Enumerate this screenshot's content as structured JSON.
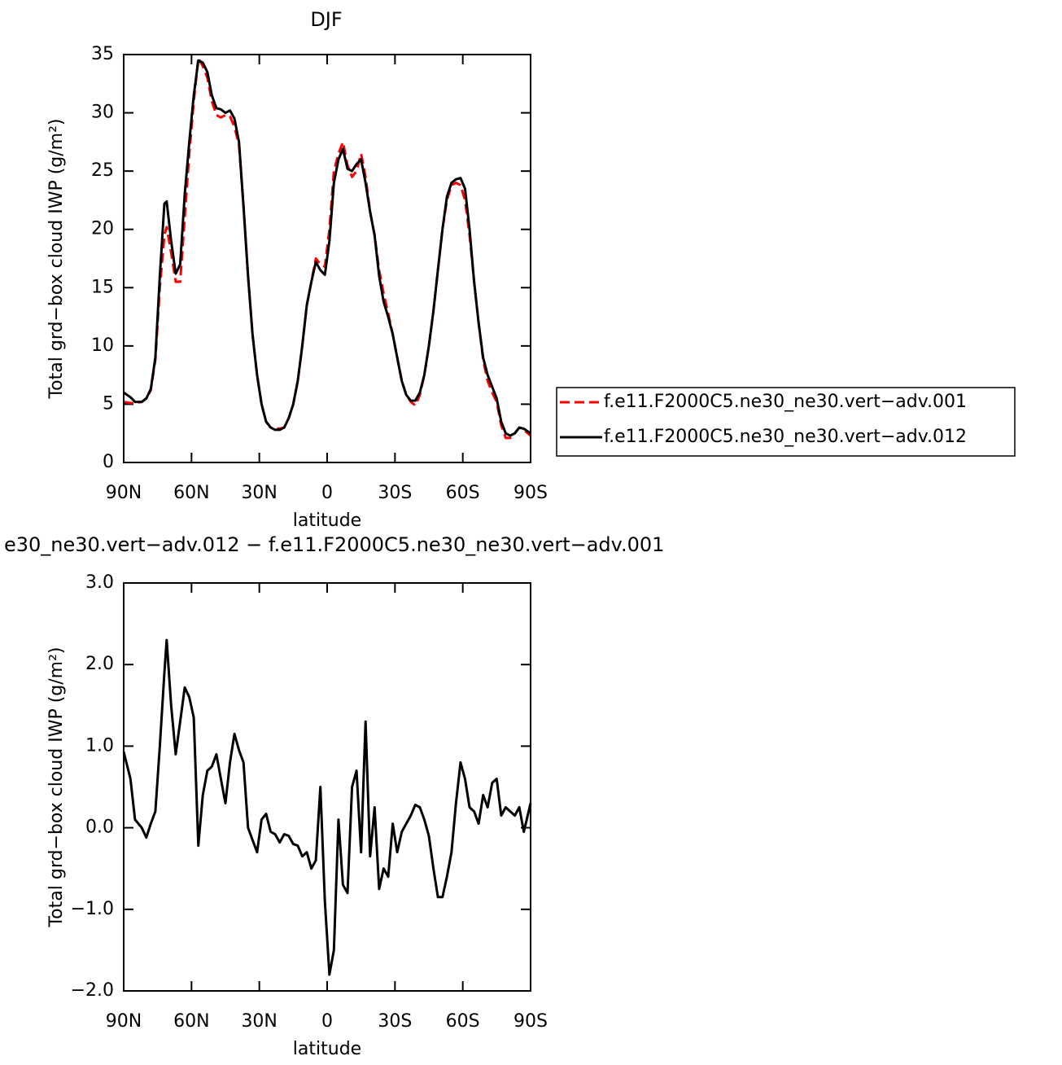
{
  "chart_data": [
    {
      "type": "line",
      "title": "DJF",
      "xlabel": "latitude",
      "ylabel": "Total grd−box cloud IWP (g/m²)",
      "x": [
        90,
        87,
        85,
        82,
        80,
        78,
        76,
        74,
        72,
        71,
        69,
        67,
        65,
        63,
        61,
        59,
        57,
        55,
        53,
        51,
        49,
        47,
        45,
        43,
        41,
        39,
        37,
        35,
        33,
        31,
        29,
        27,
        25,
        23,
        21,
        19,
        17,
        15,
        13,
        11,
        9,
        7,
        5,
        3,
        1,
        -1,
        -3,
        -5,
        -7,
        -9,
        -11,
        -13,
        -15,
        -17,
        -19,
        -21,
        -23,
        -25,
        -27,
        -29,
        -31,
        -33,
        -35,
        -37,
        -39,
        -41,
        -43,
        -45,
        -47,
        -49,
        -51,
        -53,
        -55,
        -57,
        -59,
        -61,
        -63,
        -65,
        -67,
        -69,
        -71,
        -73,
        -75,
        -77,
        -79,
        -81,
        -83,
        -85,
        -87,
        -90
      ],
      "xlim": [
        90,
        -90
      ],
      "xticks": [
        {
          "value": 90,
          "label": "90N"
        },
        {
          "value": 60,
          "label": "60N"
        },
        {
          "value": 30,
          "label": "30N"
        },
        0,
        {
          "value": -30,
          "label": "30S"
        },
        {
          "value": -60,
          "label": "60S"
        },
        {
          "value": -90,
          "label": "90S"
        }
      ],
      "ylim": [
        0,
        35
      ],
      "yticks": [
        0,
        5,
        10,
        15,
        20,
        25,
        30,
        35
      ],
      "legend": "right",
      "series": [
        {
          "name": "f.e11.F2000C5.ne30_ne30.vert−adv.001",
          "color": "#ff0000",
          "linestyle": "dashed",
          "values": [
            5.2,
            5.1,
            5.1,
            5.2,
            5.5,
            6.2,
            8.8,
            15,
            19.5,
            20.2,
            18,
            15.5,
            15.5,
            21,
            26.5,
            31,
            34.7,
            34,
            33,
            31,
            29.8,
            29.6,
            29.8,
            29.7,
            28.8,
            27.2,
            22,
            16,
            11,
            7.5,
            5,
            3.5,
            3,
            2.9,
            2.9,
            3,
            3.8,
            5,
            7,
            10,
            13.5,
            15.5,
            17.5,
            17,
            16.8,
            20,
            25,
            26.5,
            27.5,
            25.5,
            24.5,
            25,
            26.5,
            24.5,
            21.5,
            19.5,
            16.5,
            14.5,
            12.8,
            11,
            9,
            7,
            5.8,
            5.2,
            4.9,
            5.8,
            7.5,
            10,
            13,
            16.5,
            20,
            22.5,
            23.8,
            24,
            23.8,
            22.5,
            19.5,
            15.5,
            12,
            8.8,
            7,
            6,
            5.2,
            3.2,
            2.1,
            2.1,
            2.5,
            3,
            2.8,
            2.3
          ]
        },
        {
          "name": "f.e11.F2000C5.ne30_ne30.vert−adv.012",
          "color": "#000000",
          "linestyle": "solid",
          "values": [
            6,
            5.6,
            5.2,
            5.2,
            5.5,
            6.3,
            9,
            16,
            22.2,
            22.4,
            19,
            16.2,
            17,
            23,
            27.5,
            31.5,
            34.5,
            34.3,
            33.5,
            31.5,
            30.4,
            30.3,
            30,
            30.2,
            29.5,
            27.5,
            22,
            16,
            11,
            7.5,
            5,
            3.5,
            3,
            2.8,
            2.8,
            3,
            3.8,
            5,
            7,
            10,
            13.5,
            15.5,
            17.2,
            16.5,
            16.1,
            19,
            24,
            26,
            26.9,
            25.2,
            25,
            25.6,
            26,
            24,
            21.5,
            19.5,
            16,
            13.8,
            12.5,
            11,
            9,
            7,
            5.8,
            5.3,
            5.3,
            6,
            7.5,
            10,
            13,
            16.5,
            20,
            22.8,
            24,
            24.3,
            24.4,
            23.5,
            20,
            15.5,
            12,
            9,
            7.5,
            6.5,
            5.5,
            3.5,
            2.5,
            2.3,
            2.5,
            3,
            2.9,
            2.5
          ]
        }
      ]
    },
    {
      "type": "line",
      "title": "e30_ne30.vert−adv.012 − f.e11.F2000C5.ne30_ne30.vert−adv.001",
      "xlabel": "latitude",
      "ylabel": "Total grd−box cloud IWP (g/m²)",
      "x": [
        90,
        87,
        85,
        82,
        80,
        78,
        76,
        74,
        72,
        71,
        69,
        67,
        65,
        63,
        61,
        59,
        57,
        55,
        53,
        51,
        49,
        47,
        45,
        43,
        41,
        39,
        37,
        35,
        33,
        31,
        29,
        27,
        25,
        23,
        21,
        19,
        17,
        15,
        13,
        11,
        9,
        7,
        5,
        3,
        1,
        -1,
        -3,
        -5,
        -7,
        -9,
        -11,
        -13,
        -15,
        -17,
        -19,
        -21,
        -23,
        -25,
        -27,
        -29,
        -31,
        -33,
        -35,
        -37,
        -39,
        -41,
        -43,
        -45,
        -47,
        -49,
        -51,
        -53,
        -55,
        -57,
        -59,
        -61,
        -63,
        -65,
        -67,
        -69,
        -71,
        -73,
        -75,
        -77,
        -79,
        -81,
        -83,
        -85,
        -87,
        -90
      ],
      "xlim": [
        90,
        -90
      ],
      "xticks": [
        {
          "value": 90,
          "label": "90N"
        },
        {
          "value": 60,
          "label": "60N"
        },
        {
          "value": 30,
          "label": "30N"
        },
        0,
        {
          "value": -30,
          "label": "30S"
        },
        {
          "value": -60,
          "label": "60S"
        },
        {
          "value": -90,
          "label": "90S"
        }
      ],
      "ylim": [
        -2,
        3
      ],
      "yticks": [
        {
          "value": -2,
          "label": "−2.0"
        },
        {
          "value": -1,
          "label": "−1.0"
        },
        {
          "value": 0,
          "label": "0.0"
        },
        {
          "value": 1,
          "label": "1.0"
        },
        {
          "value": 2,
          "label": "2.0"
        },
        {
          "value": 3,
          "label": "3.0"
        }
      ],
      "color": "#000000",
      "values": [
        0.93,
        0.6,
        0.1,
        0,
        -0.12,
        0.05,
        0.2,
        1,
        1.9,
        2.3,
        1.5,
        0.9,
        1.3,
        1.72,
        1.6,
        1.35,
        -0.22,
        0.4,
        0.7,
        0.75,
        0.9,
        0.6,
        0.3,
        0.8,
        1.15,
        0.95,
        0.8,
        0,
        -0.15,
        -0.3,
        0.1,
        0.17,
        -0.05,
        -0.08,
        -0.18,
        -0.08,
        -0.1,
        -0.2,
        -0.22,
        -0.35,
        -0.3,
        -0.5,
        -0.4,
        0.5,
        -0.9,
        -1.8,
        -1.5,
        0.1,
        -0.7,
        -0.8,
        0.5,
        0.7,
        -0.3,
        1.3,
        -0.35,
        0.25,
        -0.75,
        -0.5,
        -0.6,
        0.05,
        -0.3,
        -0.05,
        0.05,
        0.15,
        0.28,
        0.25,
        0.1,
        -0.1,
        -0.5,
        -0.85,
        -0.85,
        -0.6,
        -0.3,
        0.3,
        0.8,
        0.6,
        0.25,
        0.2,
        0.05,
        0.4,
        0.25,
        0.55,
        0.6,
        0.15,
        0.25,
        0.2,
        0.15,
        0.25,
        -0.05,
        0.3
      ]
    }
  ]
}
